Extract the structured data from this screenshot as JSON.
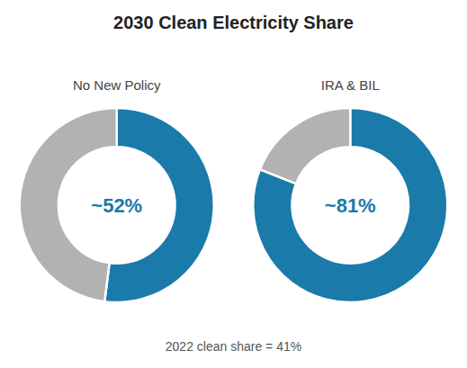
{
  "title": "2030 Clean Electricity Share",
  "subtitle": "2022 clean share = 41%",
  "chart_data": [
    {
      "type": "donut",
      "title": "No New Policy",
      "annotation": "~52%",
      "values": [
        52,
        48
      ],
      "colors": [
        "#1a7aaa",
        "#b2b2b2"
      ]
    },
    {
      "type": "donut",
      "title": "IRA & BIL",
      "annotation": "~81%",
      "values": [
        81,
        19
      ],
      "colors": [
        "#1a7aaa",
        "#b2b2b2"
      ]
    }
  ]
}
